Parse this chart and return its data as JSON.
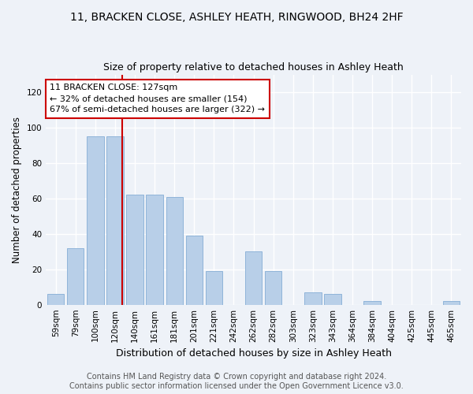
{
  "title": "11, BRACKEN CLOSE, ASHLEY HEATH, RINGWOOD, BH24 2HF",
  "subtitle": "Size of property relative to detached houses in Ashley Heath",
  "xlabel": "Distribution of detached houses by size in Ashley Heath",
  "ylabel": "Number of detached properties",
  "categories": [
    "59sqm",
    "79sqm",
    "100sqm",
    "120sqm",
    "140sqm",
    "161sqm",
    "181sqm",
    "201sqm",
    "221sqm",
    "242sqm",
    "262sqm",
    "282sqm",
    "303sqm",
    "323sqm",
    "343sqm",
    "364sqm",
    "384sqm",
    "404sqm",
    "425sqm",
    "445sqm",
    "465sqm"
  ],
  "values": [
    6,
    32,
    95,
    95,
    62,
    62,
    61,
    39,
    19,
    0,
    30,
    19,
    0,
    7,
    6,
    0,
    2,
    0,
    0,
    0,
    2
  ],
  "bar_color": "#b8cfe8",
  "bar_edge_color": "#8fb4d9",
  "property_line_color": "#cc0000",
  "property_line_index": 3.35,
  "annotation_line1": "11 BRACKEN CLOSE: 127sqm",
  "annotation_line2": "← 32% of detached houses are smaller (154)",
  "annotation_line3": "67% of semi-detached houses are larger (322) →",
  "annotation_box_color": "#cc0000",
  "ylim": [
    0,
    130
  ],
  "yticks": [
    0,
    20,
    40,
    60,
    80,
    100,
    120
  ],
  "background_color": "#eef2f8",
  "grid_color": "#ffffff",
  "footer_text": "Contains HM Land Registry data © Crown copyright and database right 2024.\nContains public sector information licensed under the Open Government Licence v3.0.",
  "title_fontsize": 10,
  "subtitle_fontsize": 9,
  "xlabel_fontsize": 9,
  "ylabel_fontsize": 8.5,
  "annotation_fontsize": 8,
  "footer_fontsize": 7,
  "tick_fontsize": 7.5
}
